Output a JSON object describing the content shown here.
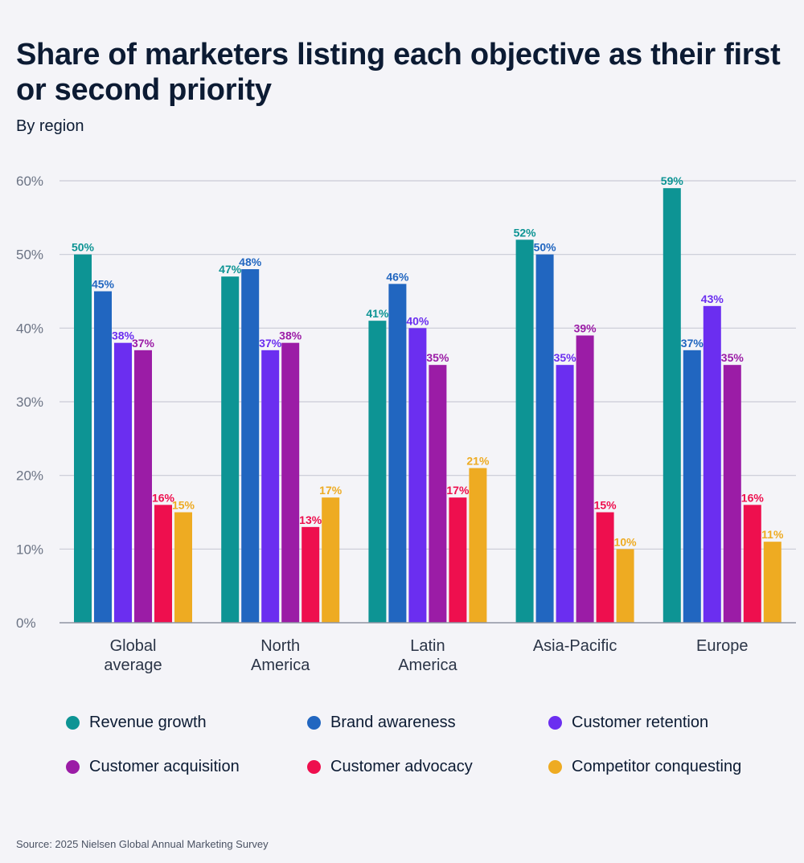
{
  "header": {
    "title": "Share of marketers listing each objective as their first or second priority",
    "subtitle": "By region"
  },
  "chart_data": {
    "type": "bar",
    "title": "Share of marketers listing each objective as their first or second priority",
    "subtitle": "By region",
    "xlabel": "",
    "ylabel": "",
    "ylim": [
      0,
      60
    ],
    "yticks": [
      0,
      10,
      20,
      30,
      40,
      50,
      60
    ],
    "ytick_labels": [
      "0%",
      "10%",
      "20%",
      "30%",
      "40%",
      "50%",
      "60%"
    ],
    "grid": true,
    "categories": [
      [
        "Global",
        "average"
      ],
      [
        "North",
        "America"
      ],
      [
        "Latin",
        "America"
      ],
      [
        "Asia-Pacific"
      ],
      [
        "Europe"
      ]
    ],
    "series": [
      {
        "name": "Revenue growth",
        "color": "#0d9494",
        "values": [
          50,
          47,
          41,
          52,
          59
        ],
        "labels": [
          "50%",
          "47%",
          "41%",
          "52%",
          "59%"
        ]
      },
      {
        "name": "Brand awareness",
        "color": "#2166c0",
        "values": [
          45,
          48,
          46,
          50,
          37
        ],
        "labels": [
          "45%",
          "48%",
          "46%",
          "50%",
          "37%"
        ]
      },
      {
        "name": "Customer retention",
        "color": "#6b2ef0",
        "values": [
          38,
          37,
          40,
          35,
          43
        ],
        "labels": [
          "38%",
          "37%",
          "40%",
          "35%",
          "43%"
        ]
      },
      {
        "name": "Customer acquisition",
        "color": "#9b1ca6",
        "values": [
          37,
          38,
          35,
          39,
          35
        ],
        "labels": [
          "37%",
          "38%",
          "35%",
          "39%",
          "35%"
        ]
      },
      {
        "name": "Customer advocacy",
        "color": "#ee0f4e",
        "values": [
          16,
          13,
          17,
          15,
          16
        ],
        "labels": [
          "16%",
          "13%",
          "17%",
          "15%",
          "16%"
        ]
      },
      {
        "name": "Competitor conquesting",
        "color": "#eeab22",
        "values": [
          15,
          17,
          21,
          10,
          11
        ],
        "labels": [
          "15%",
          "17%",
          "21%",
          "10%",
          "11%"
        ]
      }
    ],
    "legend_position": "bottom"
  },
  "footer": {
    "source": "Source: 2025 Nielsen Global Annual Marketing Survey"
  }
}
